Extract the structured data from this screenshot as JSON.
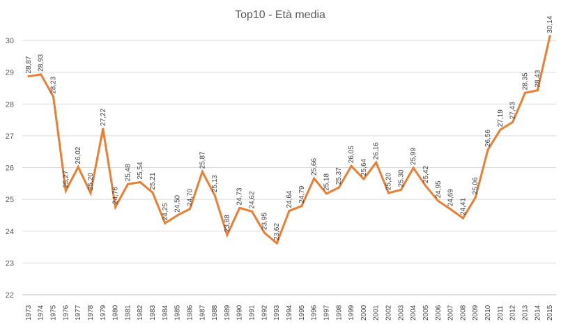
{
  "chart_data": {
    "type": "line",
    "title": "Top10 - Età media",
    "xlabel": "",
    "ylabel": "",
    "ylim": [
      22,
      30
    ],
    "yticks": [
      22,
      23,
      24,
      25,
      26,
      27,
      28,
      29,
      30
    ],
    "grid": true,
    "legend": "none",
    "color": "#ED7D31",
    "categories": [
      "1973",
      "1974",
      "1975",
      "1976",
      "1977",
      "1978",
      "1979",
      "1980",
      "1981",
      "1982",
      "1983",
      "1984",
      "1985",
      "1986",
      "1987",
      "1988",
      "1989",
      "1990",
      "1991",
      "1992",
      "1993",
      "1994",
      "1995",
      "1996",
      "1997",
      "1998",
      "1999",
      "2000",
      "2001",
      "2002",
      "2003",
      "2004",
      "2005",
      "2006",
      "2007",
      "2008",
      "2009",
      "2010",
      "2011",
      "2012",
      "2013",
      "2014",
      "2015"
    ],
    "values": [
      28.87,
      28.93,
      28.23,
      25.27,
      26.02,
      25.2,
      27.22,
      24.76,
      25.48,
      25.54,
      25.21,
      24.25,
      24.5,
      24.7,
      25.87,
      25.13,
      23.88,
      24.73,
      24.62,
      23.95,
      23.62,
      24.64,
      24.79,
      25.66,
      25.18,
      25.37,
      26.05,
      25.64,
      26.16,
      25.2,
      25.3,
      25.99,
      25.42,
      24.95,
      24.69,
      24.41,
      25.06,
      26.56,
      27.19,
      27.43,
      28.35,
      28.43,
      30.14
    ],
    "data_labels": [
      "28,87",
      "28,93",
      "28,23",
      "25,27",
      "26,02",
      "25,20",
      "27,22",
      "24,76",
      "25,48",
      "25,54",
      "25,21",
      "24,25",
      "24,50",
      "24,70",
      "25,87",
      "25,13",
      "23,88",
      "24,73",
      "24,62",
      "23,95",
      "23,62",
      "24,64",
      "24,79",
      "25,66",
      "25,18",
      "25,37",
      "26,05",
      "25,64",
      "26,16",
      "25,20",
      "25,30",
      "25,99",
      "25,42",
      "24,95",
      "24,69",
      "24,41",
      "25,06",
      "26,56",
      "27,19",
      "27,43",
      "28,35",
      "28,43",
      "30,14"
    ]
  }
}
